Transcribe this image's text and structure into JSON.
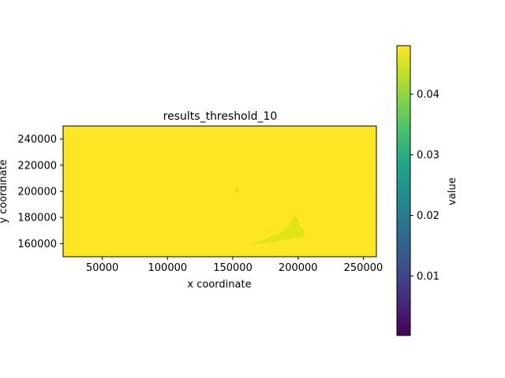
{
  "chart_data": {
    "type": "heatmap",
    "title": "results_threshold_10",
    "xlabel": "x coordinate",
    "ylabel": "y coordinate",
    "xlim": [
      20000,
      260000
    ],
    "ylim": [
      150000,
      250000
    ],
    "xticks": [
      50000,
      100000,
      150000,
      200000,
      250000
    ],
    "xtick_labels": [
      "50000",
      "100000",
      "150000",
      "200000",
      "250000"
    ],
    "yticks": [
      160000,
      180000,
      200000,
      220000,
      240000
    ],
    "ytick_labels": [
      "160000",
      "180000",
      "200000",
      "220000",
      "240000"
    ],
    "background_value": 0.048,
    "features": [
      {
        "kind": "spot",
        "x": 153000,
        "y": 200500,
        "value": 0.046
      },
      {
        "kind": "patch",
        "x": 197000,
        "y": 172000,
        "value": 0.044
      }
    ],
    "colorbar": {
      "label": "value",
      "colormap": "viridis",
      "range": [
        0.0002,
        0.048
      ],
      "ticks": [
        0.01,
        0.02,
        0.03,
        0.04
      ],
      "tick_labels": [
        "0.01",
        "0.02",
        "0.03",
        "0.04"
      ]
    },
    "colors": {
      "background_field": "#fde725",
      "feature": "#dfe318"
    }
  }
}
